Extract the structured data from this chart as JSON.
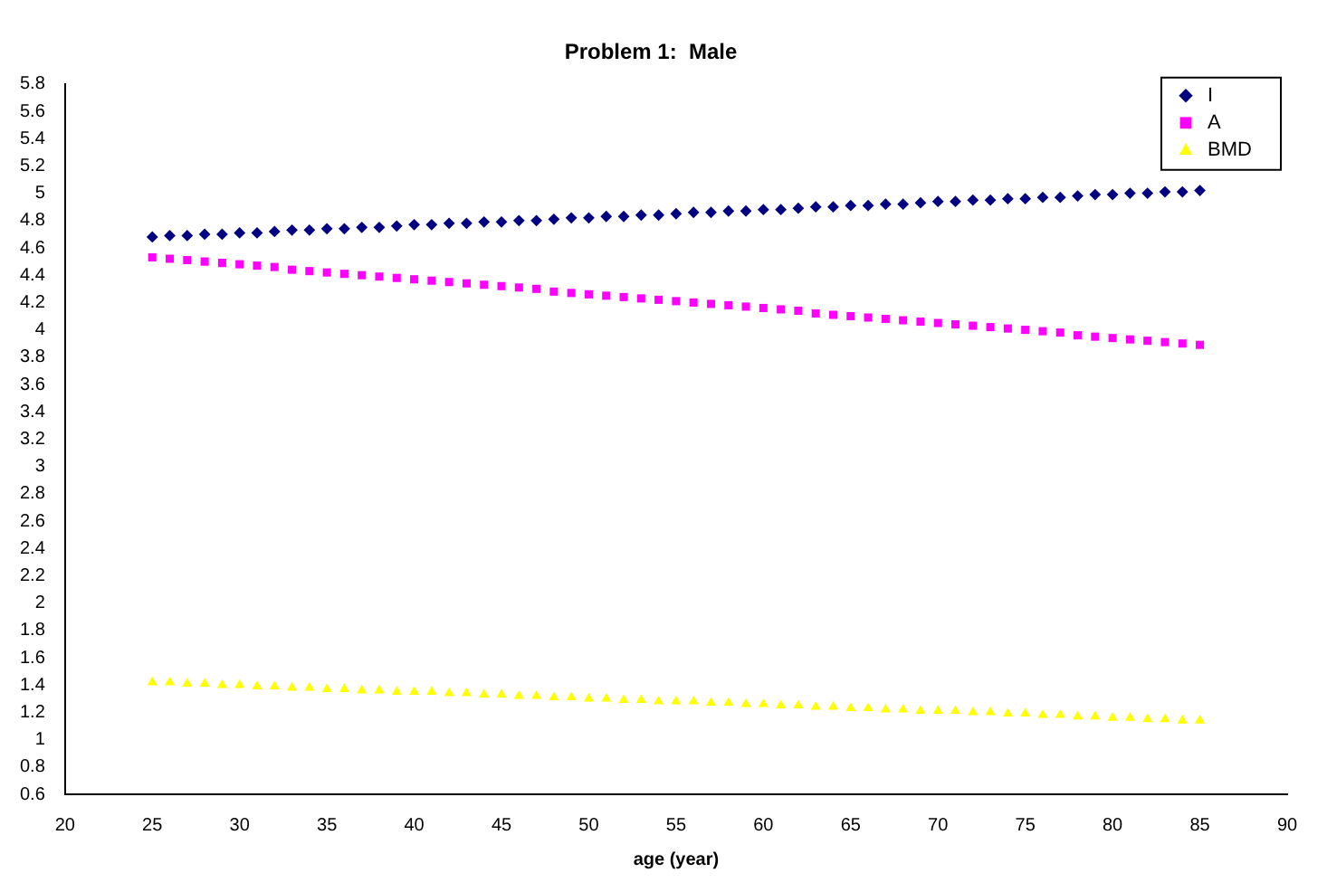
{
  "chart_data": {
    "type": "scatter",
    "title": "Problem 1:  Male",
    "xlabel": "age (year)",
    "x": [
      25,
      26,
      27,
      28,
      29,
      30,
      31,
      32,
      33,
      34,
      35,
      36,
      37,
      38,
      39,
      40,
      41,
      42,
      43,
      44,
      45,
      46,
      47,
      48,
      49,
      50,
      51,
      52,
      53,
      54,
      55,
      56,
      57,
      58,
      59,
      60,
      61,
      62,
      63,
      64,
      65,
      66,
      67,
      68,
      69,
      70,
      71,
      72,
      73,
      74,
      75,
      76,
      77,
      78,
      79,
      80,
      81,
      82,
      83,
      84,
      85
    ],
    "series": [
      {
        "name": "I",
        "color": "#000080",
        "marker": "diamond",
        "values": [
          4.68,
          4.69,
          4.69,
          4.7,
          4.7,
          4.71,
          4.71,
          4.72,
          4.73,
          4.73,
          4.74,
          4.74,
          4.75,
          4.75,
          4.76,
          4.77,
          4.77,
          4.78,
          4.78,
          4.79,
          4.79,
          4.8,
          4.8,
          4.81,
          4.82,
          4.82,
          4.83,
          4.83,
          4.84,
          4.84,
          4.85,
          4.86,
          4.86,
          4.87,
          4.87,
          4.88,
          4.88,
          4.89,
          4.9,
          4.9,
          4.91,
          4.91,
          4.92,
          4.92,
          4.93,
          4.94,
          4.94,
          4.95,
          4.95,
          4.96,
          4.96,
          4.97,
          4.97,
          4.98,
          4.99,
          4.99,
          5.0,
          5.0,
          5.01,
          5.01,
          5.02
        ]
      },
      {
        "name": "A",
        "color": "#ff00ff",
        "marker": "square",
        "values": [
          4.53,
          4.52,
          4.51,
          4.5,
          4.49,
          4.48,
          4.47,
          4.46,
          4.44,
          4.43,
          4.42,
          4.41,
          4.4,
          4.39,
          4.38,
          4.37,
          4.36,
          4.35,
          4.34,
          4.33,
          4.32,
          4.31,
          4.3,
          4.28,
          4.27,
          4.26,
          4.25,
          4.24,
          4.23,
          4.22,
          4.21,
          4.2,
          4.19,
          4.18,
          4.17,
          4.16,
          4.15,
          4.14,
          4.12,
          4.11,
          4.1,
          4.09,
          4.08,
          4.07,
          4.06,
          4.05,
          4.04,
          4.03,
          4.02,
          4.01,
          4.0,
          3.99,
          3.98,
          3.96,
          3.95,
          3.94,
          3.93,
          3.92,
          3.91,
          3.9,
          3.89
        ]
      },
      {
        "name": "BMD",
        "color": "#ffff00",
        "marker": "triangle",
        "values": [
          1.42,
          1.42,
          1.41,
          1.41,
          1.4,
          1.4,
          1.39,
          1.39,
          1.38,
          1.38,
          1.37,
          1.37,
          1.36,
          1.36,
          1.35,
          1.35,
          1.35,
          1.34,
          1.34,
          1.33,
          1.33,
          1.32,
          1.32,
          1.31,
          1.31,
          1.3,
          1.3,
          1.29,
          1.29,
          1.28,
          1.28,
          1.28,
          1.27,
          1.27,
          1.26,
          1.26,
          1.25,
          1.25,
          1.24,
          1.24,
          1.23,
          1.23,
          1.22,
          1.22,
          1.21,
          1.21,
          1.21,
          1.2,
          1.2,
          1.19,
          1.19,
          1.18,
          1.18,
          1.17,
          1.17,
          1.16,
          1.16,
          1.15,
          1.15,
          1.14,
          1.14
        ]
      }
    ],
    "xlim": [
      20,
      90
    ],
    "xticks": [
      20,
      25,
      30,
      35,
      40,
      45,
      50,
      55,
      60,
      65,
      70,
      75,
      80,
      85,
      90
    ],
    "ylim": [
      0.6,
      5.8
    ],
    "yticks": [
      0.6,
      0.8,
      1,
      1.2,
      1.4,
      1.6,
      1.8,
      2,
      2.2,
      2.4,
      2.6,
      2.8,
      3,
      3.2,
      3.4,
      3.6,
      3.8,
      4,
      4.2,
      4.4,
      4.6,
      4.8,
      5,
      5.2,
      5.4,
      5.6,
      5.8
    ],
    "grid": false,
    "legend": "top right"
  }
}
